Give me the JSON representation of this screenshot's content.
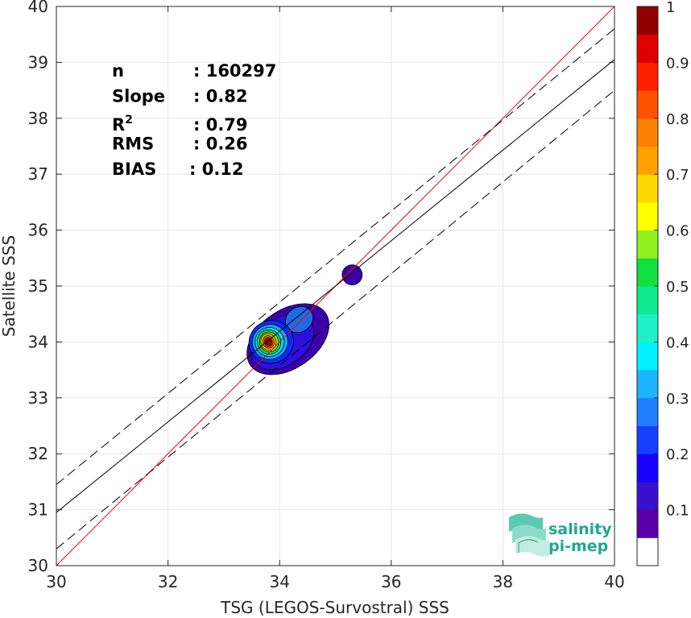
{
  "chart_data": {
    "type": "heatmap",
    "xlabel": "TSG (LEGOS-Survostral) SSS",
    "ylabel": "Satellite SSS",
    "xlim": [
      30,
      40
    ],
    "ylim": [
      30,
      40
    ],
    "x_ticks": [
      30,
      32,
      34,
      36,
      38,
      40
    ],
    "y_ticks": [
      30,
      31,
      32,
      33,
      34,
      35,
      36,
      37,
      38,
      39,
      40
    ],
    "grid": true,
    "stats": [
      {
        "label": "n",
        "value": ": 160297"
      },
      {
        "label": "Slope",
        "value": ": 0.82"
      },
      {
        "label": "R",
        "sup": "2",
        "value": ": 0.79"
      },
      {
        "label": "RMS",
        "value": ": 0.26"
      },
      {
        "label": "BIAS",
        "value": ": 0.12"
      }
    ],
    "lines": {
      "identity": {
        "color": "#ff0000",
        "points": [
          [
            30,
            30
          ],
          [
            40,
            40
          ]
        ]
      },
      "regression": {
        "color": "#000000",
        "slope": 0.82,
        "points": [
          [
            30,
            30.95
          ],
          [
            40,
            39.05
          ]
        ]
      },
      "band_upper": {
        "color": "#000000",
        "style": "dashed",
        "points": [
          [
            30,
            31.45
          ],
          [
            40,
            39.6
          ]
        ]
      },
      "band_lower": {
        "color": "#000000",
        "style": "dashed",
        "points": [
          [
            30,
            30.3
          ],
          [
            40,
            38.5
          ]
        ]
      }
    },
    "density_contours": [
      {
        "level": 0.05,
        "center": [
          34.15,
          34.05
        ],
        "rx": 0.82,
        "ry": 0.52,
        "angle_deg": 35,
        "color": "#3b00aa"
      },
      {
        "level": 0.05,
        "center": [
          35.3,
          35.2
        ],
        "rx": 0.18,
        "ry": 0.18,
        "angle_deg": 0,
        "color": "#3b00aa"
      },
      {
        "level": 0.1,
        "center": [
          34.05,
          34.0
        ],
        "rx": 0.62,
        "ry": 0.42,
        "angle_deg": 35,
        "color": "#2b10e0"
      },
      {
        "level": 0.15,
        "center": [
          34.35,
          34.4
        ],
        "rx": 0.26,
        "ry": 0.22,
        "angle_deg": 35,
        "color": "#1e6be6"
      },
      {
        "level": 0.2,
        "center": [
          33.85,
          34.0
        ],
        "rx": 0.4,
        "ry": 0.38,
        "angle_deg": 20,
        "color": "#0a2cff"
      },
      {
        "level": 0.3,
        "center": [
          33.83,
          34.0
        ],
        "rx": 0.32,
        "ry": 0.31,
        "angle_deg": 20,
        "color": "#1aa5ff"
      },
      {
        "level": 0.4,
        "center": [
          33.82,
          34.0
        ],
        "rx": 0.26,
        "ry": 0.26,
        "angle_deg": 20,
        "color": "#00e8ff"
      },
      {
        "level": 0.5,
        "center": [
          33.81,
          34.0
        ],
        "rx": 0.21,
        "ry": 0.22,
        "angle_deg": 20,
        "color": "#1fe070"
      },
      {
        "level": 0.6,
        "center": [
          33.81,
          34.0
        ],
        "rx": 0.17,
        "ry": 0.18,
        "angle_deg": 20,
        "color": "#a8f000"
      },
      {
        "level": 0.7,
        "center": [
          33.8,
          34.0
        ],
        "rx": 0.135,
        "ry": 0.15,
        "angle_deg": 20,
        "color": "#ffd200"
      },
      {
        "level": 0.8,
        "center": [
          33.8,
          34.0
        ],
        "rx": 0.1,
        "ry": 0.115,
        "angle_deg": 20,
        "color": "#ff7a00"
      },
      {
        "level": 0.9,
        "center": [
          33.8,
          34.0
        ],
        "rx": 0.07,
        "ry": 0.085,
        "angle_deg": 20,
        "color": "#ff1a00"
      },
      {
        "level": 0.95,
        "center": [
          33.8,
          34.0
        ],
        "rx": 0.045,
        "ry": 0.055,
        "angle_deg": 20,
        "color": "#a80000"
      }
    ],
    "colorbar": {
      "range": [
        0,
        1
      ],
      "tick_labels": [
        "0.1",
        "0.2",
        "0.3",
        "0.4",
        "0.5",
        "0.6",
        "0.7",
        "0.8",
        "0.9",
        "1"
      ],
      "tick_values": [
        0.1,
        0.2,
        0.3,
        0.4,
        0.5,
        0.6,
        0.7,
        0.8,
        0.9,
        1.0
      ],
      "bands": [
        {
          "from": 0.0,
          "to": 0.05,
          "color": "#ffffff"
        },
        {
          "from": 0.05,
          "to": 0.1,
          "color": "#5a00a8"
        },
        {
          "from": 0.1,
          "to": 0.15,
          "color": "#3a10d0"
        },
        {
          "from": 0.15,
          "to": 0.2,
          "color": "#1a00ff"
        },
        {
          "from": 0.2,
          "to": 0.25,
          "color": "#1640ff"
        },
        {
          "from": 0.25,
          "to": 0.3,
          "color": "#1e7fff"
        },
        {
          "from": 0.3,
          "to": 0.35,
          "color": "#1ab4ff"
        },
        {
          "from": 0.35,
          "to": 0.4,
          "color": "#00f0ff"
        },
        {
          "from": 0.4,
          "to": 0.45,
          "color": "#20f0c8"
        },
        {
          "from": 0.45,
          "to": 0.5,
          "color": "#10e890"
        },
        {
          "from": 0.5,
          "to": 0.55,
          "color": "#10e040"
        },
        {
          "from": 0.55,
          "to": 0.6,
          "color": "#90f020"
        },
        {
          "from": 0.6,
          "to": 0.65,
          "color": "#ffff00"
        },
        {
          "from": 0.65,
          "to": 0.7,
          "color": "#ffd800"
        },
        {
          "from": 0.7,
          "to": 0.75,
          "color": "#ffa000"
        },
        {
          "from": 0.75,
          "to": 0.8,
          "color": "#ff8000"
        },
        {
          "from": 0.8,
          "to": 0.85,
          "color": "#ff5000"
        },
        {
          "from": 0.85,
          "to": 0.9,
          "color": "#ff2000"
        },
        {
          "from": 0.9,
          "to": 0.95,
          "color": "#e00000"
        },
        {
          "from": 0.95,
          "to": 1.0,
          "color": "#900000"
        }
      ]
    }
  },
  "logo": {
    "line1": "salinity",
    "line2": "pi-mep",
    "color": "#1fa88f"
  }
}
